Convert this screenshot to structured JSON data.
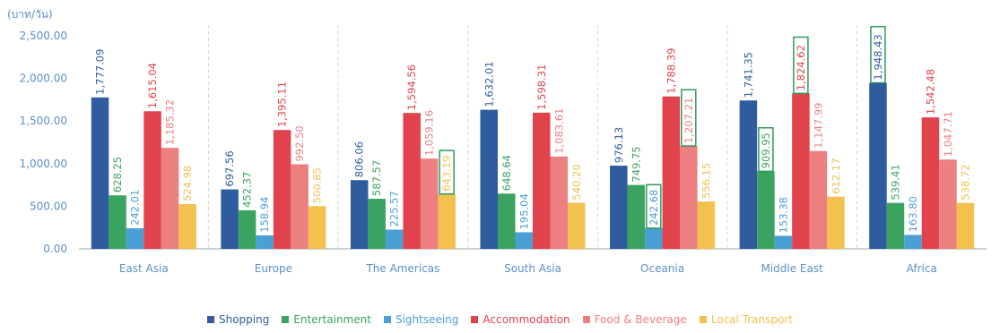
{
  "chart_data": {
    "type": "bar",
    "ylabel": "(บาท/วัน)",
    "ylim": [
      0,
      2500
    ],
    "ytick_values": [
      0,
      500,
      1000,
      1500,
      2000,
      2500
    ],
    "ytick_labels": [
      "0.00",
      "500.00",
      "1,000.00",
      "1,500.00",
      "2,000.00",
      "2,500.00"
    ],
    "categories": [
      "East Asia",
      "Europe",
      "The Americas",
      "South Asia",
      "Oceania",
      "Middle East",
      "Africa"
    ],
    "legend_position": "bottom",
    "grid": "vertical-dashed",
    "series": [
      {
        "name": "Shopping",
        "color": "#2e5c9e",
        "values": [
          1777.09,
          697.56,
          806.06,
          1632.01,
          976.13,
          1741.35,
          1948.43
        ],
        "labels": [
          "1,777.09",
          "697.56",
          "806.06",
          "1,632.01",
          "976.13",
          "1,741.35",
          "1,948.43"
        ],
        "highlight": [
          false,
          false,
          false,
          false,
          false,
          false,
          true
        ]
      },
      {
        "name": "Entertainment",
        "color": "#3aa35f",
        "values": [
          628.25,
          452.37,
          587.57,
          648.64,
          749.75,
          909.95,
          539.41
        ],
        "labels": [
          "628.25",
          "452.37",
          "587.57",
          "648.64",
          "749.75",
          "909.95",
          "539.41"
        ],
        "highlight": [
          false,
          false,
          false,
          false,
          false,
          true,
          false
        ]
      },
      {
        "name": "Sightseeing",
        "color": "#4a9fd4",
        "values": [
          242.01,
          158.94,
          225.57,
          195.04,
          242.68,
          153.38,
          163.8
        ],
        "labels": [
          "242.01",
          "158.94",
          "225.57",
          "195.04",
          "242.68",
          "153.38",
          "163.80"
        ],
        "highlight": [
          false,
          false,
          false,
          false,
          true,
          false,
          false
        ]
      },
      {
        "name": "Accommodation",
        "color": "#e0434b",
        "values": [
          1615.04,
          1395.11,
          1594.56,
          1598.31,
          1788.39,
          1824.62,
          1542.48
        ],
        "labels": [
          "1,615.04",
          "1,395.11",
          "1,594.56",
          "1,598.31",
          "1,788.39",
          "1,824.62",
          "1,542.48"
        ],
        "highlight": [
          false,
          false,
          false,
          false,
          false,
          true,
          false
        ]
      },
      {
        "name": "Food & Beverage",
        "color": "#ec7f7f",
        "values": [
          1185.32,
          992.5,
          1059.16,
          1083.61,
          1207.21,
          1147.99,
          1047.71
        ],
        "labels": [
          "1,185.32",
          "992.50",
          "1,059.16",
          "1,083.61",
          "1,207.21",
          "1,147.99",
          "1,047.71"
        ],
        "highlight": [
          false,
          false,
          false,
          false,
          true,
          false,
          false
        ]
      },
      {
        "name": "Local Transport",
        "color": "#f2c14e",
        "values": [
          524.98,
          500.85,
          643.19,
          540.2,
          556.15,
          612.17,
          538.72
        ],
        "labels": [
          "524.98",
          "500.85",
          "643.19",
          "540.20",
          "556.15",
          "612.17",
          "538.72"
        ],
        "highlight": [
          false,
          false,
          true,
          false,
          false,
          false,
          false
        ]
      }
    ]
  }
}
